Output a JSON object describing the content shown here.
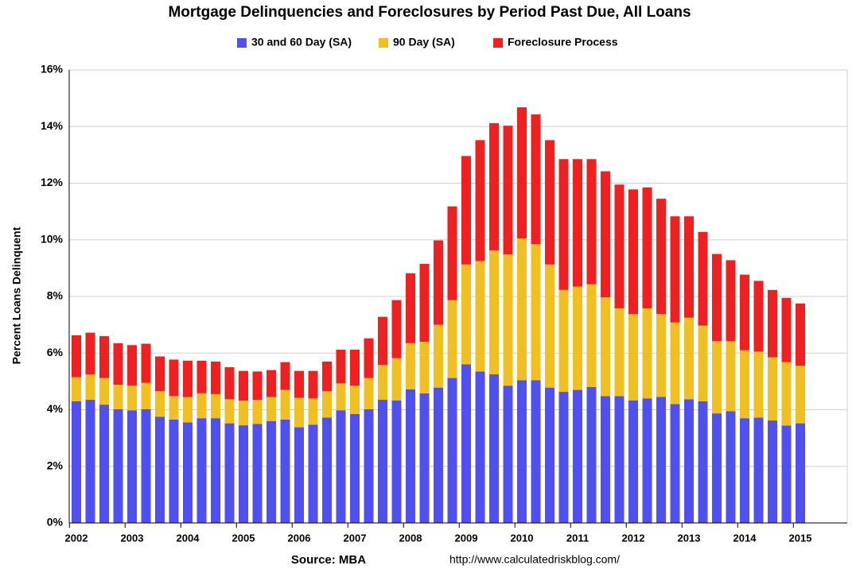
{
  "chart_data": {
    "type": "stacked_bar",
    "title": "Mortgage Delinquencies and Foreclosures by Period Past Due, All Loans",
    "y_label": "Percent Loans Delinquent",
    "source": "Source: MBA",
    "url": "http://www.calculatedriskblog.com/",
    "categories": [
      "2002",
      null,
      null,
      null,
      "2003",
      null,
      null,
      null,
      "2004",
      null,
      null,
      null,
      "2005",
      null,
      null,
      null,
      "2006",
      null,
      null,
      null,
      "2007",
      null,
      null,
      null,
      "2008",
      null,
      null,
      null,
      "2009",
      null,
      null,
      null,
      "2010",
      null,
      null,
      null,
      "2011",
      null,
      null,
      null,
      "2012",
      null,
      null,
      null,
      "2013",
      null,
      null,
      null,
      "2014",
      null,
      null,
      null,
      "2015"
    ],
    "series": [
      {
        "name": "30 and 60 Day (SA)",
        "color": "#5050f0",
        "values": [
          4.3,
          4.35,
          4.18,
          4.02,
          3.98,
          4.02,
          3.75,
          3.65,
          3.55,
          3.7,
          3.7,
          3.52,
          3.45,
          3.5,
          3.6,
          3.65,
          3.38,
          3.47,
          3.72,
          3.98,
          3.85,
          4.02,
          4.35,
          4.33,
          4.72,
          4.58,
          4.78,
          5.12,
          5.6,
          5.35,
          5.25,
          4.85,
          5.04,
          5.04,
          4.78,
          4.63,
          4.7,
          4.8,
          4.48,
          4.48,
          4.33,
          4.4,
          4.45,
          4.2,
          4.37,
          4.3,
          3.87,
          3.95,
          3.7,
          3.72,
          3.62,
          3.44,
          3.52
        ]
      },
      {
        "name": "90 Day (SA)",
        "color": "#f0c020",
        "values": [
          0.85,
          0.9,
          0.94,
          0.86,
          0.87,
          0.93,
          0.9,
          0.83,
          0.9,
          0.88,
          0.85,
          0.85,
          0.87,
          0.85,
          0.85,
          1.05,
          1.04,
          0.93,
          0.93,
          0.95,
          1.0,
          1.1,
          1.23,
          1.49,
          1.63,
          1.82,
          2.22,
          2.75,
          3.53,
          3.9,
          4.38,
          4.63,
          5.01,
          4.81,
          4.35,
          3.6,
          3.65,
          3.63,
          3.49,
          3.1,
          3.05,
          3.18,
          2.93,
          2.88,
          2.88,
          2.67,
          2.55,
          2.47,
          2.4,
          2.33,
          2.23,
          2.24,
          2.03
        ]
      },
      {
        "name": "Foreclosure Process",
        "color": "#f02020",
        "values": [
          1.48,
          1.47,
          1.48,
          1.47,
          1.43,
          1.38,
          1.23,
          1.29,
          1.28,
          1.15,
          1.15,
          1.13,
          1.05,
          1.0,
          0.95,
          0.98,
          0.95,
          0.97,
          1.05,
          1.19,
          1.27,
          1.4,
          1.7,
          2.05,
          2.47,
          2.75,
          2.98,
          3.31,
          3.83,
          4.27,
          4.49,
          4.55,
          4.63,
          4.58,
          4.39,
          4.62,
          4.5,
          4.42,
          4.45,
          4.37,
          4.4,
          4.27,
          4.07,
          3.75,
          3.58,
          3.31,
          3.08,
          2.86,
          2.67,
          2.5,
          2.38,
          2.27,
          2.2
        ]
      }
    ],
    "ylim": [
      0,
      16
    ],
    "yticks": [
      {
        "value": 0,
        "label": "0%"
      },
      {
        "value": 2,
        "label": "2%"
      },
      {
        "value": 4,
        "label": "4%"
      },
      {
        "value": 6,
        "label": "6%"
      },
      {
        "value": 8,
        "label": "8%"
      },
      {
        "value": 10,
        "label": "10%"
      },
      {
        "value": 12,
        "label": "12%"
      },
      {
        "value": 14,
        "label": "14%"
      },
      {
        "value": 16,
        "label": "16%"
      }
    ],
    "grid": true
  }
}
